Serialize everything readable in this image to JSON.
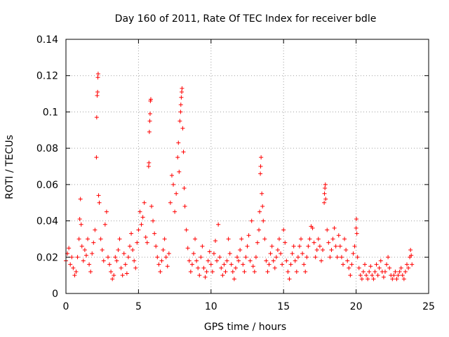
{
  "chart_data": {
    "type": "scatter",
    "title": "Day 160 of 2011, Rate Of TEC Index for receiver bdle",
    "xlabel": "GPS time / hours",
    "ylabel": "ROTI / TECUs",
    "xlim": [
      0,
      25
    ],
    "ylim": [
      0,
      0.14
    ],
    "x_ticks": [
      0,
      5,
      10,
      15,
      20,
      25
    ],
    "y_ticks": [
      0,
      0.02,
      0.04,
      0.06,
      0.08,
      0.1,
      0.12,
      0.14
    ],
    "x_tick_labels": [
      "0",
      "5",
      "10",
      "15",
      "20",
      "25"
    ],
    "y_tick_labels": [
      "0",
      "0.02",
      "0.04",
      "0.06",
      "0.08",
      "0.1",
      "0.12",
      "0.14"
    ],
    "grid": true,
    "marker": "+",
    "color": "#ff0000",
    "series": [
      {
        "name": "ROTI",
        "points": [
          [
            0.0,
            0.018
          ],
          [
            0.1,
            0.022
          ],
          [
            0.2,
            0.025
          ],
          [
            0.3,
            0.016
          ],
          [
            0.4,
            0.02
          ],
          [
            0.5,
            0.014
          ],
          [
            0.6,
            0.01
          ],
          [
            0.7,
            0.012
          ],
          [
            0.8,
            0.02
          ],
          [
            0.9,
            0.03
          ],
          [
            0.95,
            0.041
          ],
          [
            1.0,
            0.052
          ],
          [
            1.05,
            0.038
          ],
          [
            1.1,
            0.026
          ],
          [
            1.2,
            0.018
          ],
          [
            1.3,
            0.024
          ],
          [
            1.4,
            0.021
          ],
          [
            1.5,
            0.03
          ],
          [
            1.6,
            0.016
          ],
          [
            1.7,
            0.012
          ],
          [
            1.8,
            0.022
          ],
          [
            1.9,
            0.028
          ],
          [
            2.0,
            0.035
          ],
          [
            2.1,
            0.075
          ],
          [
            2.12,
            0.097
          ],
          [
            2.15,
            0.109
          ],
          [
            2.18,
            0.111
          ],
          [
            2.2,
            0.119
          ],
          [
            2.22,
            0.121
          ],
          [
            2.25,
            0.054
          ],
          [
            2.3,
            0.05
          ],
          [
            2.4,
            0.03
          ],
          [
            2.5,
            0.024
          ],
          [
            2.6,
            0.018
          ],
          [
            2.7,
            0.038
          ],
          [
            2.8,
            0.045
          ],
          [
            2.9,
            0.02
          ],
          [
            3.0,
            0.016
          ],
          [
            3.1,
            0.012
          ],
          [
            3.2,
            0.008
          ],
          [
            3.3,
            0.01
          ],
          [
            3.4,
            0.02
          ],
          [
            3.5,
            0.018
          ],
          [
            3.6,
            0.024
          ],
          [
            3.7,
            0.03
          ],
          [
            3.8,
            0.014
          ],
          [
            3.9,
            0.01
          ],
          [
            4.0,
            0.022
          ],
          [
            4.1,
            0.016
          ],
          [
            4.2,
            0.011
          ],
          [
            4.3,
            0.02
          ],
          [
            4.4,
            0.026
          ],
          [
            4.5,
            0.033
          ],
          [
            4.6,
            0.024
          ],
          [
            4.7,
            0.018
          ],
          [
            4.8,
            0.014
          ],
          [
            4.9,
            0.028
          ],
          [
            5.0,
            0.035
          ],
          [
            5.1,
            0.045
          ],
          [
            5.2,
            0.038
          ],
          [
            5.3,
            0.042
          ],
          [
            5.4,
            0.05
          ],
          [
            5.5,
            0.031
          ],
          [
            5.6,
            0.028
          ],
          [
            5.7,
            0.07
          ],
          [
            5.72,
            0.072
          ],
          [
            5.75,
            0.089
          ],
          [
            5.78,
            0.095
          ],
          [
            5.8,
            0.099
          ],
          [
            5.82,
            0.106
          ],
          [
            5.85,
            0.107
          ],
          [
            5.9,
            0.048
          ],
          [
            6.0,
            0.04
          ],
          [
            6.1,
            0.033
          ],
          [
            6.2,
            0.026
          ],
          [
            6.3,
            0.02
          ],
          [
            6.4,
            0.016
          ],
          [
            6.5,
            0.012
          ],
          [
            6.6,
            0.018
          ],
          [
            6.7,
            0.024
          ],
          [
            6.8,
            0.03
          ],
          [
            6.9,
            0.02
          ],
          [
            7.0,
            0.015
          ],
          [
            7.1,
            0.022
          ],
          [
            7.2,
            0.05
          ],
          [
            7.3,
            0.065
          ],
          [
            7.4,
            0.06
          ],
          [
            7.5,
            0.045
          ],
          [
            7.6,
            0.055
          ],
          [
            7.7,
            0.075
          ],
          [
            7.75,
            0.083
          ],
          [
            7.8,
            0.067
          ],
          [
            7.85,
            0.095
          ],
          [
            7.9,
            0.1
          ],
          [
            7.92,
            0.104
          ],
          [
            7.95,
            0.108
          ],
          [
            7.98,
            0.111
          ],
          [
            8.0,
            0.113
          ],
          [
            8.05,
            0.091
          ],
          [
            8.1,
            0.078
          ],
          [
            8.15,
            0.058
          ],
          [
            8.2,
            0.048
          ],
          [
            8.3,
            0.035
          ],
          [
            8.4,
            0.025
          ],
          [
            8.5,
            0.018
          ],
          [
            8.6,
            0.012
          ],
          [
            8.7,
            0.016
          ],
          [
            8.8,
            0.022
          ],
          [
            8.9,
            0.03
          ],
          [
            9.0,
            0.018
          ],
          [
            9.1,
            0.014
          ],
          [
            9.2,
            0.01
          ],
          [
            9.3,
            0.02
          ],
          [
            9.4,
            0.026
          ],
          [
            9.5,
            0.014
          ],
          [
            9.6,
            0.009
          ],
          [
            9.7,
            0.012
          ],
          [
            9.8,
            0.018
          ],
          [
            9.9,
            0.023
          ],
          [
            10.0,
            0.016
          ],
          [
            10.1,
            0.012
          ],
          [
            10.2,
            0.022
          ],
          [
            10.3,
            0.029
          ],
          [
            10.4,
            0.018
          ],
          [
            10.5,
            0.038
          ],
          [
            10.6,
            0.02
          ],
          [
            10.7,
            0.014
          ],
          [
            10.8,
            0.01
          ],
          [
            10.9,
            0.016
          ],
          [
            11.0,
            0.012
          ],
          [
            11.1,
            0.018
          ],
          [
            11.2,
            0.03
          ],
          [
            11.3,
            0.022
          ],
          [
            11.4,
            0.016
          ],
          [
            11.5,
            0.012
          ],
          [
            11.6,
            0.008
          ],
          [
            11.7,
            0.014
          ],
          [
            11.8,
            0.02
          ],
          [
            11.9,
            0.018
          ],
          [
            12.0,
            0.024
          ],
          [
            12.1,
            0.03
          ],
          [
            12.2,
            0.016
          ],
          [
            12.3,
            0.012
          ],
          [
            12.4,
            0.02
          ],
          [
            12.5,
            0.026
          ],
          [
            12.6,
            0.032
          ],
          [
            12.7,
            0.018
          ],
          [
            12.8,
            0.04
          ],
          [
            12.9,
            0.015
          ],
          [
            13.0,
            0.012
          ],
          [
            13.1,
            0.02
          ],
          [
            13.2,
            0.028
          ],
          [
            13.3,
            0.035
          ],
          [
            13.35,
            0.045
          ],
          [
            13.4,
            0.066
          ],
          [
            13.42,
            0.07
          ],
          [
            13.45,
            0.075
          ],
          [
            13.5,
            0.055
          ],
          [
            13.55,
            0.048
          ],
          [
            13.6,
            0.04
          ],
          [
            13.7,
            0.03
          ],
          [
            13.8,
            0.018
          ],
          [
            13.9,
            0.012
          ],
          [
            14.0,
            0.016
          ],
          [
            14.1,
            0.022
          ],
          [
            14.2,
            0.026
          ],
          [
            14.3,
            0.018
          ],
          [
            14.4,
            0.014
          ],
          [
            14.5,
            0.02
          ],
          [
            14.6,
            0.024
          ],
          [
            14.7,
            0.03
          ],
          [
            14.8,
            0.022
          ],
          [
            14.9,
            0.016
          ],
          [
            15.0,
            0.035
          ],
          [
            15.1,
            0.028
          ],
          [
            15.2,
            0.018
          ],
          [
            15.3,
            0.012
          ],
          [
            15.4,
            0.008
          ],
          [
            15.5,
            0.016
          ],
          [
            15.6,
            0.022
          ],
          [
            15.7,
            0.026
          ],
          [
            15.8,
            0.018
          ],
          [
            15.9,
            0.012
          ],
          [
            16.0,
            0.02
          ],
          [
            16.1,
            0.026
          ],
          [
            16.2,
            0.03
          ],
          [
            16.3,
            0.022
          ],
          [
            16.4,
            0.016
          ],
          [
            16.5,
            0.012
          ],
          [
            16.6,
            0.02
          ],
          [
            16.7,
            0.026
          ],
          [
            16.8,
            0.03
          ],
          [
            16.9,
            0.037
          ],
          [
            17.0,
            0.036
          ],
          [
            17.1,
            0.028
          ],
          [
            17.2,
            0.02
          ],
          [
            17.3,
            0.024
          ],
          [
            17.4,
            0.03
          ],
          [
            17.5,
            0.026
          ],
          [
            17.6,
            0.018
          ],
          [
            17.7,
            0.024
          ],
          [
            17.8,
            0.05
          ],
          [
            17.82,
            0.055
          ],
          [
            17.85,
            0.058
          ],
          [
            17.88,
            0.06
          ],
          [
            17.9,
            0.052
          ],
          [
            18.0,
            0.035
          ],
          [
            18.1,
            0.028
          ],
          [
            18.2,
            0.02
          ],
          [
            18.3,
            0.024
          ],
          [
            18.4,
            0.03
          ],
          [
            18.5,
            0.036
          ],
          [
            18.6,
            0.026
          ],
          [
            18.7,
            0.02
          ],
          [
            18.8,
            0.032
          ],
          [
            18.9,
            0.026
          ],
          [
            19.0,
            0.02
          ],
          [
            19.1,
            0.016
          ],
          [
            19.2,
            0.03
          ],
          [
            19.3,
            0.024
          ],
          [
            19.4,
            0.018
          ],
          [
            19.5,
            0.014
          ],
          [
            19.6,
            0.01
          ],
          [
            19.7,
            0.016
          ],
          [
            19.8,
            0.022
          ],
          [
            19.9,
            0.026
          ],
          [
            20.0,
            0.036
          ],
          [
            20.02,
            0.041
          ],
          [
            20.05,
            0.033
          ],
          [
            20.1,
            0.02
          ],
          [
            20.2,
            0.014
          ],
          [
            20.3,
            0.01
          ],
          [
            20.4,
            0.008
          ],
          [
            20.5,
            0.012
          ],
          [
            20.6,
            0.016
          ],
          [
            20.7,
            0.01
          ],
          [
            20.8,
            0.008
          ],
          [
            20.9,
            0.012
          ],
          [
            21.0,
            0.015
          ],
          [
            21.1,
            0.01
          ],
          [
            21.2,
            0.008
          ],
          [
            21.3,
            0.012
          ],
          [
            21.4,
            0.016
          ],
          [
            21.5,
            0.01
          ],
          [
            21.6,
            0.014
          ],
          [
            21.7,
            0.018
          ],
          [
            21.8,
            0.012
          ],
          [
            21.9,
            0.009
          ],
          [
            22.0,
            0.012
          ],
          [
            22.1,
            0.016
          ],
          [
            22.2,
            0.02
          ],
          [
            22.3,
            0.014
          ],
          [
            22.4,
            0.01
          ],
          [
            22.5,
            0.008
          ],
          [
            22.6,
            0.01
          ],
          [
            22.7,
            0.012
          ],
          [
            22.8,
            0.008
          ],
          [
            22.9,
            0.01
          ],
          [
            23.0,
            0.012
          ],
          [
            23.1,
            0.014
          ],
          [
            23.2,
            0.01
          ],
          [
            23.3,
            0.008
          ],
          [
            23.4,
            0.012
          ],
          [
            23.5,
            0.016
          ],
          [
            23.6,
            0.014
          ],
          [
            23.7,
            0.02
          ],
          [
            23.75,
            0.024
          ],
          [
            23.8,
            0.021
          ],
          [
            23.85,
            0.016
          ]
        ]
      }
    ]
  }
}
